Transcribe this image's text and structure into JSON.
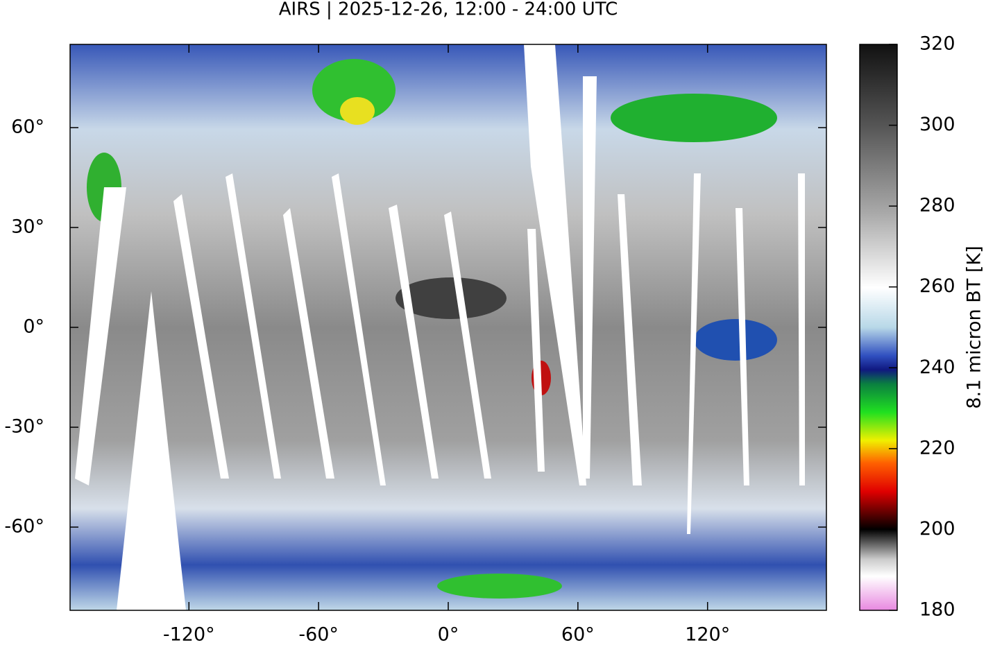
{
  "map": {
    "title": "AIRS | 2025-12-26, 12:00 - 24:00 UTC",
    "xlim": [
      -175,
      175
    ],
    "ylim": [
      -85,
      85
    ],
    "xticks": [
      {
        "value": -120,
        "label": "-120°"
      },
      {
        "value": -60,
        "label": "-60°"
      },
      {
        "value": 0,
        "label": "0°"
      },
      {
        "value": 60,
        "label": "60°"
      },
      {
        "value": 120,
        "label": "120°"
      }
    ],
    "yticks": [
      {
        "value": -60,
        "label": "-60°"
      },
      {
        "value": -30,
        "label": "-30°"
      },
      {
        "value": 0,
        "label": "0°"
      },
      {
        "value": 30,
        "label": "30°"
      },
      {
        "value": 60,
        "label": "60°"
      }
    ]
  },
  "colorbar": {
    "label": "8.1 micron BT [K]",
    "lim": [
      180,
      320
    ],
    "ticks": [
      180,
      200,
      220,
      240,
      260,
      280,
      300,
      320
    ]
  }
}
